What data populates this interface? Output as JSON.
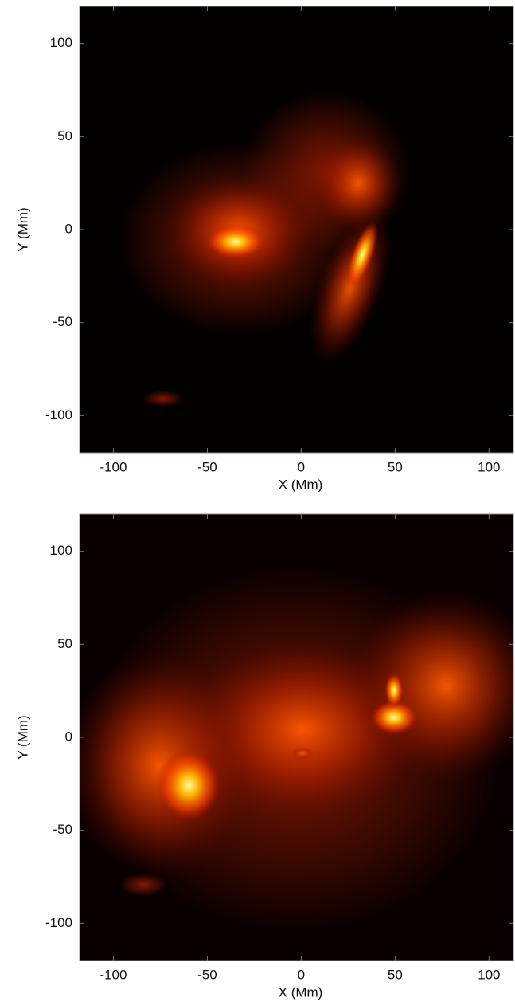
{
  "chart_data": [
    {
      "type": "heatmap",
      "xlabel": "X (Mm)",
      "ylabel": "Y (Mm)",
      "xlim": [
        -118,
        113
      ],
      "ylim": [
        -120,
        120
      ],
      "xticks": [
        -100,
        -50,
        0,
        50,
        100
      ],
      "yticks": [
        -100,
        -50,
        0,
        50,
        100
      ]
    },
    {
      "type": "heatmap",
      "xlabel": "X (Mm)",
      "ylabel": "Y (Mm)",
      "xlim": [
        -118,
        113
      ],
      "ylim": [
        -120,
        120
      ],
      "xticks": [
        -100,
        -50,
        0,
        50,
        100
      ],
      "yticks": [
        -100,
        -50,
        0,
        50,
        100
      ]
    }
  ]
}
